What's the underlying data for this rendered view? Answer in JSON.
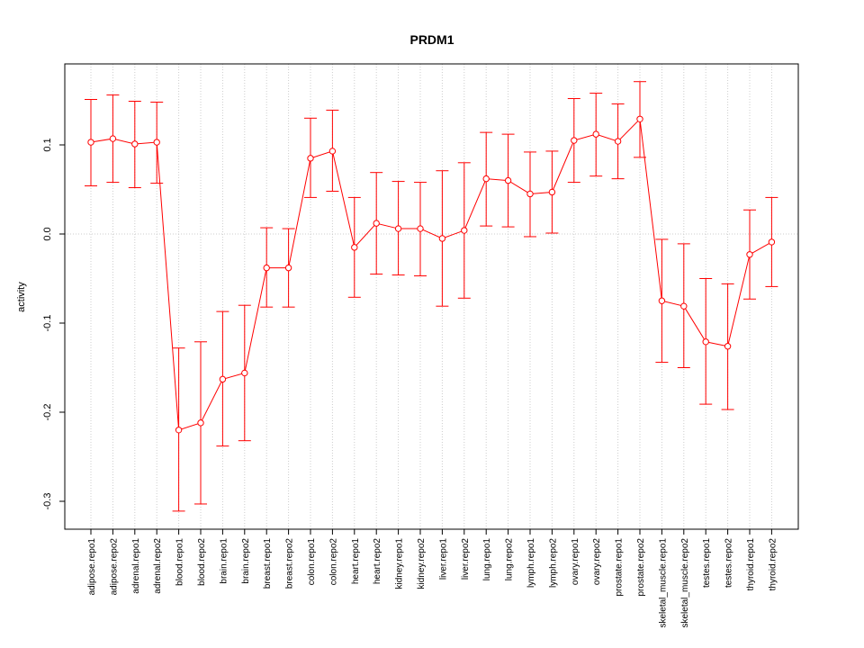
{
  "chart_data": {
    "type": "line",
    "title": "PRDM1",
    "xlabel": "",
    "ylabel": "activity",
    "ylim": [
      -0.33,
      0.19
    ],
    "yticks": [
      0.1,
      0.0,
      -0.1,
      -0.2,
      -0.3
    ],
    "ytick_labels": [
      "0.1",
      "0.0",
      "-0.1",
      "-0.2",
      "-0.3"
    ],
    "grid": true,
    "colors": {
      "series": "#ff0000",
      "grid": "#cccccc",
      "axis": "#000000"
    },
    "categories": [
      "adipose.repo1",
      "adipose.repo2",
      "adrenal.repo1",
      "adrenal.repo2",
      "blood.repo1",
      "blood.repo2",
      "brain.repo1",
      "brain.repo2",
      "breast.repo1",
      "breast.repo2",
      "colon.repo1",
      "colon.repo2",
      "heart.repo1",
      "heart.repo2",
      "kidney.repo1",
      "kidney.repo2",
      "liver.repo1",
      "liver.repo2",
      "lung.repo1",
      "lung.repo2",
      "lymph.repo1",
      "lymph.repo2",
      "ovary.repo1",
      "ovary.repo2",
      "prostate.repo1",
      "prostate.repo2",
      "skeletal_muscle.repo1",
      "skeletal_muscle.repo2",
      "testes.repo1",
      "testes.repo2",
      "thyroid.repo1",
      "thyroid.repo2"
    ],
    "series": [
      {
        "values": [
          0.103,
          0.107,
          0.101,
          0.103,
          -0.22,
          -0.212,
          -0.163,
          -0.156,
          -0.038,
          -0.038,
          0.085,
          0.093,
          -0.015,
          0.012,
          0.006,
          0.006,
          -0.005,
          0.004,
          0.062,
          0.06,
          0.045,
          0.047,
          0.105,
          0.112,
          0.104,
          0.129,
          -0.075,
          -0.081,
          -0.121,
          -0.126,
          -0.023,
          -0.009
        ],
        "upper": [
          0.151,
          0.156,
          0.149,
          0.148,
          -0.128,
          -0.121,
          -0.087,
          -0.08,
          0.007,
          0.006,
          0.13,
          0.139,
          0.041,
          0.069,
          0.059,
          0.058,
          0.071,
          0.08,
          0.114,
          0.112,
          0.092,
          0.093,
          0.152,
          0.158,
          0.146,
          0.171,
          -0.006,
          -0.011,
          -0.05,
          -0.056,
          0.027,
          0.041
        ],
        "lower": [
          0.054,
          0.058,
          0.052,
          0.057,
          -0.311,
          -0.303,
          -0.238,
          -0.232,
          -0.082,
          -0.082,
          0.041,
          0.048,
          -0.071,
          -0.045,
          -0.046,
          -0.047,
          -0.081,
          -0.072,
          0.009,
          0.008,
          -0.003,
          0.001,
          0.058,
          0.065,
          0.062,
          0.086,
          -0.144,
          -0.15,
          -0.191,
          -0.197,
          -0.073,
          -0.059
        ]
      }
    ]
  }
}
